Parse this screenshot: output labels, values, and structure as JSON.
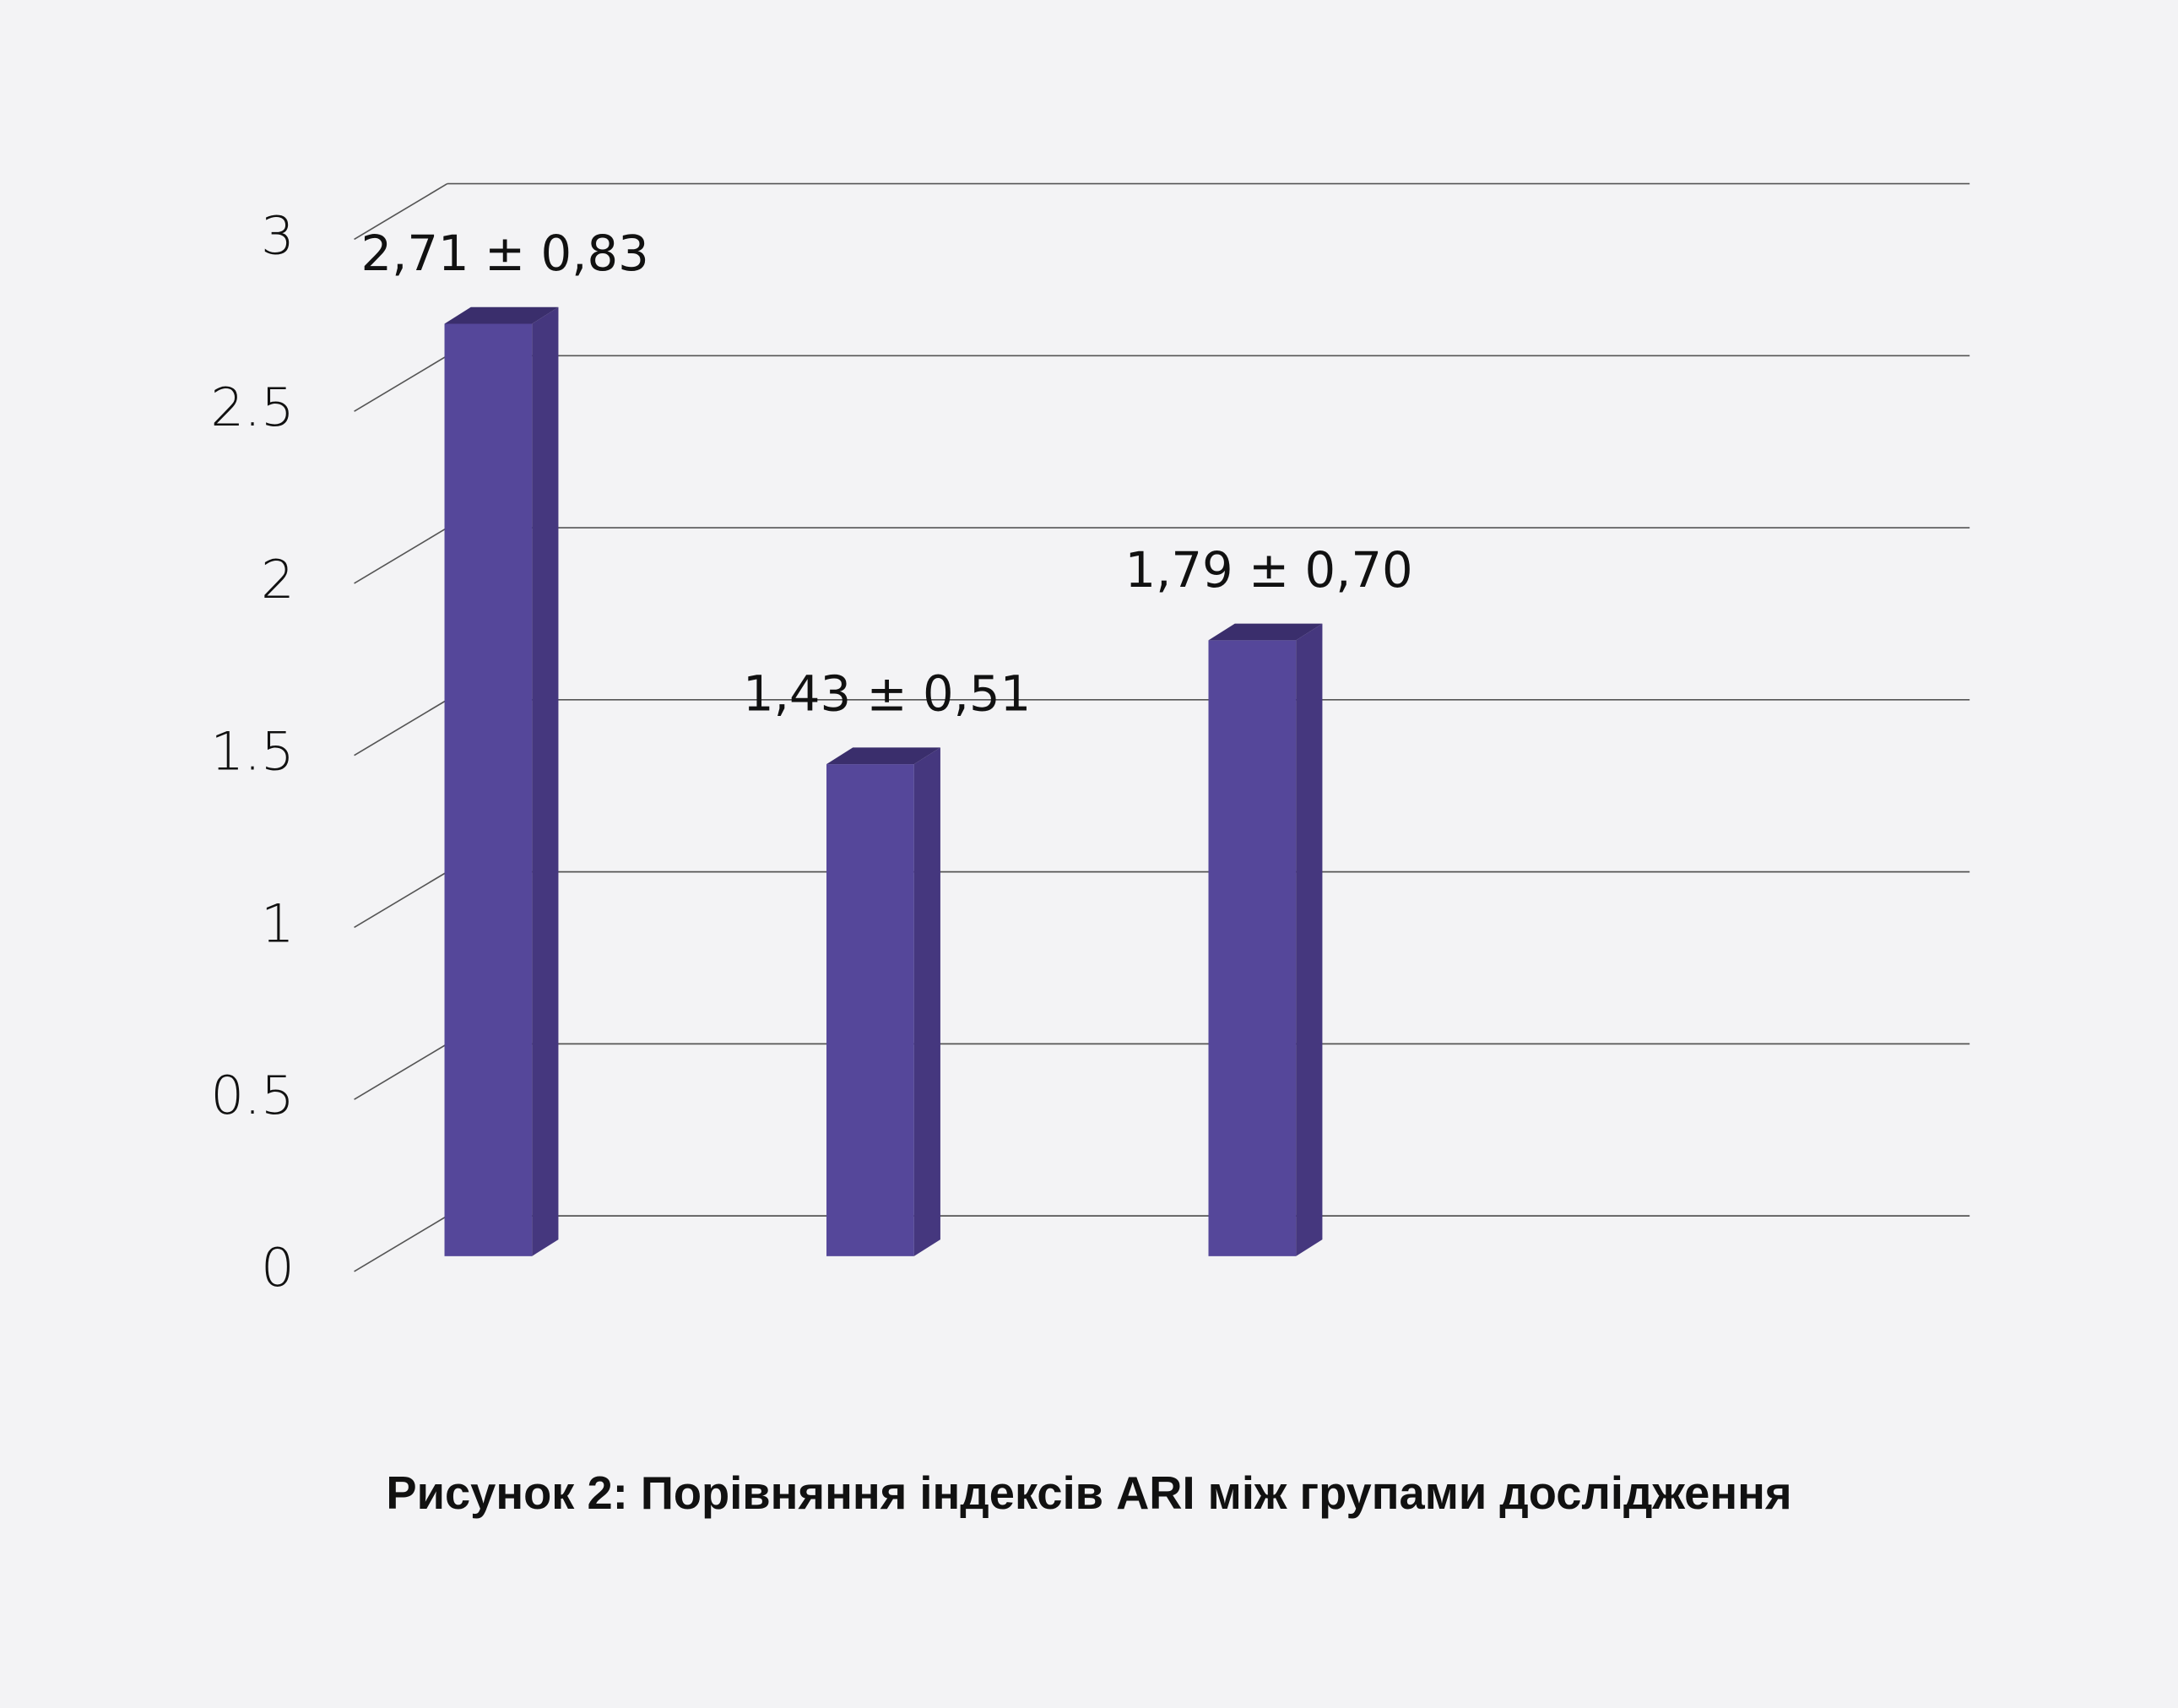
{
  "chart_data": {
    "type": "bar3d",
    "title": "Рисунок 2: Порівняння індексів ARI між групами дослідження",
    "categories": [
      null,
      null,
      null,
      null
    ],
    "values": [
      2.71,
      1.43,
      1.79,
      null
    ],
    "value_labels": [
      "2,71 ± 0,83",
      "1,43 ± 0,51",
      "1,79 ± 0,70",
      null
    ],
    "color": "#55479a",
    "ylim": [
      0,
      3
    ],
    "yticks": [
      0,
      0.5,
      1,
      1.5,
      2,
      2.5,
      3
    ],
    "grid": true
  }
}
